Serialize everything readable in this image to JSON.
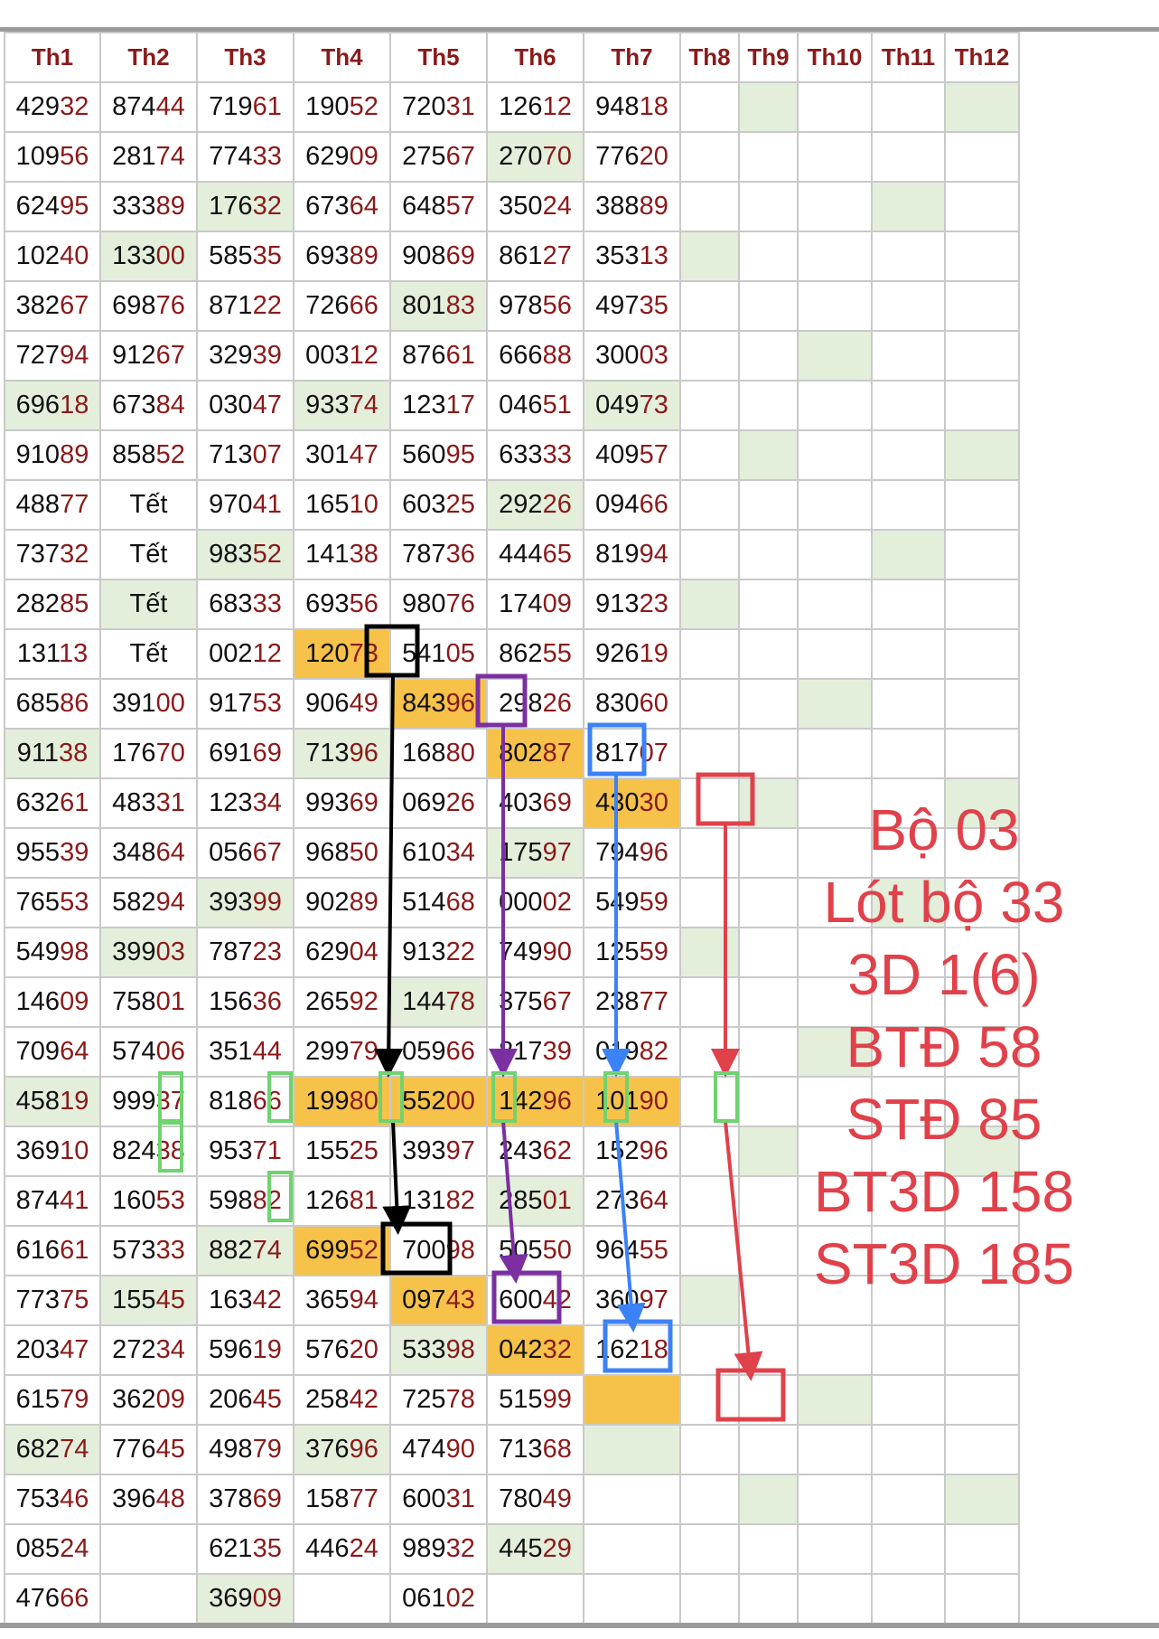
{
  "columns": [
    "Th1",
    "Th2",
    "Th3",
    "Th4",
    "Th5",
    "Th6",
    "Th7",
    "Th8",
    "Th9",
    "Th10",
    "Th11",
    "Th12"
  ],
  "rows": [
    [
      "42932",
      "87444",
      "71961",
      "19052",
      "72031",
      "12612",
      "94818"
    ],
    [
      "10956",
      "28174",
      "77433",
      "62909",
      "27567",
      "27070",
      "77620"
    ],
    [
      "62495",
      "33389",
      "17632",
      "67364",
      "64857",
      "35024",
      "38889"
    ],
    [
      "10240",
      "13300",
      "58535",
      "69389",
      "90869",
      "86127",
      "35313"
    ],
    [
      "38267",
      "69876",
      "87122",
      "72666",
      "80183",
      "97856",
      "49735"
    ],
    [
      "72794",
      "91267",
      "32939",
      "00312",
      "87661",
      "66688",
      "30003"
    ],
    [
      "69618",
      "67384",
      "03047",
      "93374",
      "12317",
      "04651",
      "04973"
    ],
    [
      "91089",
      "85852",
      "71307",
      "30147",
      "56095",
      "63333",
      "40957"
    ],
    [
      "48877",
      "Tết",
      "97041",
      "16510",
      "60325",
      "29226",
      "09466"
    ],
    [
      "73732",
      "Tết",
      "98352",
      "14138",
      "78736",
      "44465",
      "81994"
    ],
    [
      "28285",
      "Tết",
      "68333",
      "69356",
      "98076",
      "17409",
      "91323"
    ],
    [
      "13113",
      "Tết",
      "00212",
      "12073",
      "54105",
      "86255",
      "92619"
    ],
    [
      "68586",
      "39100",
      "91753",
      "90649",
      "84396",
      "29826",
      "83060"
    ],
    [
      "91138",
      "17670",
      "69169",
      "71396",
      "16880",
      "80287",
      "81707"
    ],
    [
      "63261",
      "48331",
      "12334",
      "99369",
      "06926",
      "40369",
      "43030"
    ],
    [
      "95539",
      "34864",
      "05667",
      "96850",
      "61034",
      "17597",
      "79496"
    ],
    [
      "76553",
      "58294",
      "39399",
      "90289",
      "51468",
      "00002",
      "54959"
    ],
    [
      "54998",
      "39903",
      "78723",
      "62904",
      "91322",
      "74990",
      "12559"
    ],
    [
      "14609",
      "75801",
      "15636",
      "26592",
      "14478",
      "37567",
      "23877"
    ],
    [
      "70964",
      "57406",
      "35144",
      "29979",
      "05966",
      "81739",
      "01982"
    ],
    [
      "45819",
      "99937",
      "81866",
      "19980",
      "55200",
      "14296",
      "10190"
    ],
    [
      "36910",
      "82438",
      "95371",
      "15525",
      "39397",
      "24362",
      "15296"
    ],
    [
      "87441",
      "16053",
      "59882",
      "12681",
      "13182",
      "28501",
      "27364"
    ],
    [
      "61661",
      "57333",
      "88274",
      "69952",
      "70098",
      "50550",
      "96455"
    ],
    [
      "77375",
      "15545",
      "16342",
      "36594",
      "09743",
      "60042",
      "36097"
    ],
    [
      "20347",
      "27234",
      "59619",
      "57620",
      "53398",
      "04232",
      "16218"
    ],
    [
      "61579",
      "36209",
      "20645",
      "25842",
      "72578",
      "51599",
      ""
    ],
    [
      "68274",
      "77645",
      "49879",
      "37696",
      "47490",
      "71368",
      ""
    ],
    [
      "75346",
      "39648",
      "37869",
      "15877",
      "60031",
      "78049",
      ""
    ],
    [
      "08524",
      "",
      "62135",
      "44624",
      "98932",
      "44529",
      ""
    ],
    [
      "47666",
      "",
      "36909",
      "",
      "06102",
      "",
      ""
    ]
  ],
  "annotations": [
    "Bộ 03",
    "Lót bộ 33",
    "3D 1(6)",
    "BTĐ 58",
    "STĐ 85",
    "BT3D 158",
    "ST3D 185"
  ],
  "colors": {
    "header_text": "#8b1a1a",
    "green_cell": "#e3efdb",
    "highlight_cell": "#f6c24a",
    "annotation_text": "#e0414a",
    "arrow_black": "#000000",
    "arrow_purple": "#7b2fa0",
    "arrow_blue": "#3b82f6",
    "arrow_red": "#e0414a",
    "marker_green": "#6fd36f"
  }
}
